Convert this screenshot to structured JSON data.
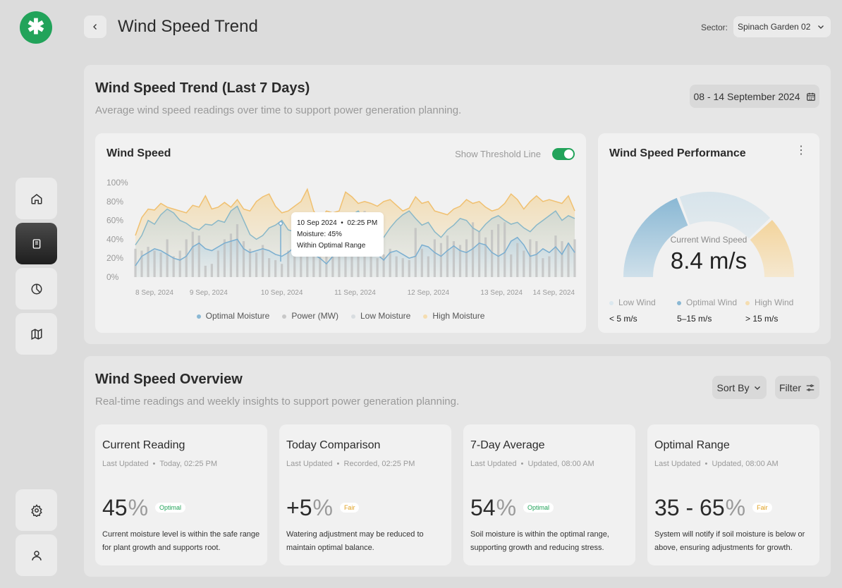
{
  "header": {
    "title": "Wind Speed Trend",
    "sector_label": "Sector:",
    "sector_value": "Spinach Garden 02"
  },
  "logo": {
    "glyph": "✱"
  },
  "sidebar": {
    "items": [
      {
        "name": "home",
        "icon": "home-icon"
      },
      {
        "name": "reports",
        "icon": "document-icon",
        "active": true
      },
      {
        "name": "analytics",
        "icon": "pie-chart-icon"
      },
      {
        "name": "map",
        "icon": "map-icon"
      }
    ],
    "bottom": [
      {
        "name": "settings",
        "icon": "gear-icon"
      },
      {
        "name": "profile",
        "icon": "user-icon"
      }
    ]
  },
  "trend": {
    "title": "Wind Speed Trend (Last 7 Days)",
    "subtitle": "Average wind speed readings over time to support power generation planning.",
    "date_range": "08 - 14 September 2024"
  },
  "chart_card": {
    "title": "Wind Speed",
    "toggle_label": "Show Threshold Line",
    "toggle_on": true,
    "tooltip": {
      "date": "10 Sep 2024",
      "time": "02:25 PM",
      "line1": "Moisture: 45%",
      "line2": "Within Optimal Range"
    }
  },
  "chart_data": {
    "type": "area",
    "y_ticks": [
      "100%",
      "80%",
      "60%",
      "40%",
      "20%",
      "0%"
    ],
    "ylim": [
      0,
      100
    ],
    "x_ticks": [
      "8 Sep, 2024",
      "9 Sep, 2024",
      "10 Sep, 2024",
      "11 Sep, 2024",
      "12 Sep, 2024",
      "13 Sep, 2024",
      "14 Sep, 2024"
    ],
    "legend": [
      "Optimal Moisture",
      "Power (MW)",
      "Low Moisture",
      "High Moisture"
    ],
    "colors": {
      "optimal": "#8ab8d4",
      "power": "#b8b8b8",
      "low": "#c9d3d8",
      "high": "#f0c070"
    },
    "series": [
      {
        "name": "High Moisture",
        "values": [
          44,
          63,
          72,
          71,
          78,
          74,
          72,
          70,
          68,
          76,
          74,
          86,
          72,
          74,
          79,
          74,
          82,
          72,
          70,
          80,
          85,
          88,
          75,
          68,
          70,
          75,
          80,
          93,
          70,
          60,
          70,
          68,
          70,
          90,
          85,
          78,
          80,
          78,
          75,
          80,
          82,
          76,
          70,
          73,
          85,
          78,
          80,
          70,
          68,
          66,
          72,
          75,
          82,
          78,
          80,
          74,
          70,
          72,
          78,
          88,
          82,
          72,
          80,
          86,
          80,
          82,
          80,
          78,
          86,
          70
        ]
      },
      {
        "name": "Low Moisture",
        "values": [
          34,
          44,
          60,
          56,
          66,
          72,
          68,
          60,
          57,
          52,
          50,
          56,
          55,
          60,
          58,
          70,
          75,
          60,
          45,
          40,
          44,
          52,
          55,
          60,
          50,
          48,
          52,
          64,
          66,
          58,
          45,
          40,
          44,
          55,
          66,
          70,
          60,
          52,
          45,
          42,
          52,
          60,
          66,
          70,
          62,
          55,
          58,
          48,
          42,
          50,
          55,
          62,
          60,
          52,
          48,
          56,
          62,
          65,
          60,
          56,
          58,
          52,
          48,
          55,
          60,
          65,
          70,
          60,
          65,
          62
        ]
      },
      {
        "name": "Optimal Moisture",
        "values": [
          12,
          22,
          26,
          30,
          28,
          24,
          20,
          18,
          22,
          32,
          36,
          30,
          28,
          32,
          36,
          38,
          40,
          30,
          26,
          28,
          30,
          28,
          24,
          22,
          26,
          32,
          36,
          28,
          24,
          20,
          14,
          22,
          30,
          40,
          44,
          42,
          38,
          32,
          24,
          18,
          26,
          28,
          24,
          20,
          22,
          34,
          32,
          26,
          22,
          28,
          33,
          28,
          26,
          30,
          36,
          34,
          26,
          22,
          26,
          38,
          42,
          34,
          22,
          24,
          30,
          26,
          32,
          24,
          36,
          26
        ]
      },
      {
        "name": "Power (MW)",
        "values": [
          30,
          28,
          32,
          28,
          26,
          40,
          22,
          28,
          40,
          48,
          44,
          12,
          14,
          28,
          40,
          46,
          56,
          38,
          30,
          26,
          34,
          20,
          18,
          14,
          28,
          48,
          52,
          64,
          40,
          34,
          40,
          50,
          42,
          50,
          60,
          66,
          70,
          28,
          20,
          24,
          30,
          22,
          20,
          18,
          52,
          30,
          22,
          40,
          36,
          44,
          38,
          34,
          40,
          58,
          48,
          42,
          50,
          56,
          58,
          24,
          36,
          28,
          40,
          38,
          20,
          22,
          44,
          38,
          36,
          40
        ]
      }
    ]
  },
  "performance": {
    "title": "Wind Speed Performance",
    "kebab": "⋮",
    "gauge_label": "Current Wind Speed",
    "gauge_value": "8.4 m/s",
    "segments": [
      {
        "label": "Low Wind",
        "range": "< 5 m/s",
        "color": "#dce8ef"
      },
      {
        "label": "Optimal Wind",
        "range": "5–15 m/s",
        "color": "#8ab8d4"
      },
      {
        "label": "High Wind",
        "range": "> 15 m/s",
        "color": "#f5ddb0"
      }
    ]
  },
  "overview": {
    "title": "Wind Speed Overview",
    "subtitle": "Real-time readings and weekly insights to support power generation planning.",
    "sort_label": "Sort By",
    "filter_label": "Filter",
    "cards": [
      {
        "title": "Current Reading",
        "updated_label": "Last Updated",
        "updated": "Today, 02:25 PM",
        "value": "45",
        "unit": "%",
        "badge": "Optimal",
        "badge_type": "optimal",
        "desc": "Current moisture level is within the safe range for plant growth and supports root."
      },
      {
        "title": "Today Comparison",
        "updated_label": "Last Updated",
        "updated": "Recorded, 02:25 PM",
        "value": "+5",
        "unit": "%",
        "badge": "Fair",
        "badge_type": "fair",
        "desc": "Watering adjustment may be reduced to maintain optimal balance."
      },
      {
        "title": "7-Day Average",
        "updated_label": "Last Updated",
        "updated": "Updated, 08:00 AM",
        "value": "54",
        "unit": "%",
        "badge": "Optimal",
        "badge_type": "optimal",
        "desc": "Soil moisture is within the optimal range, supporting growth and reducing stress."
      },
      {
        "title": "Optimal Range",
        "updated_label": "Last Updated",
        "updated": "Updated, 08:00 AM",
        "value": "35 - 65",
        "unit": "%",
        "badge": "Fair",
        "badge_type": "fair",
        "desc": "System will notify if soil moisture is below or above, ensuring adjustments for growth."
      }
    ]
  }
}
